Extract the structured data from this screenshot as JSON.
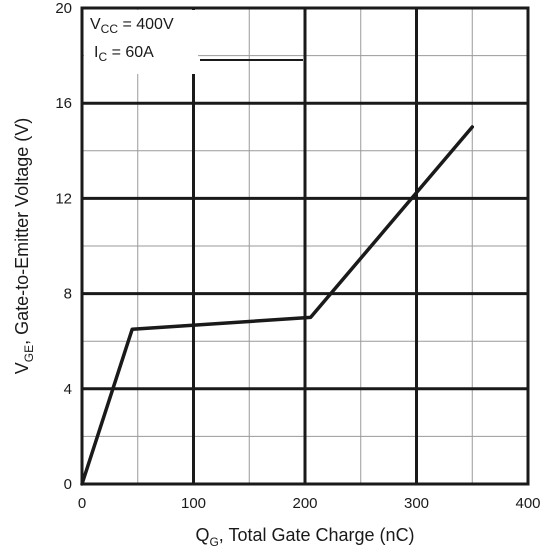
{
  "chart_data": {
    "type": "line",
    "title": "",
    "xlabel": {
      "main": "Q",
      "sub": "G",
      "rest": ", Total Gate Charge (nC)"
    },
    "ylabel": {
      "main": "V",
      "sub": "GE",
      "rest": ", Gate-to-Emitter Voltage (V)"
    },
    "xlim": [
      0,
      400
    ],
    "ylim": [
      0,
      20
    ],
    "x_ticks": [
      "0",
      "100",
      "200",
      "300",
      "400"
    ],
    "y_ticks": [
      "0",
      "4",
      "8",
      "12",
      "16",
      "20"
    ],
    "grid": true,
    "annotations": [
      {
        "main": "V",
        "sub": "CC",
        "rest": " = 400V"
      },
      {
        "main": "I",
        "sub": "C",
        "rest": "   = 60A"
      }
    ],
    "series": [
      {
        "x": [
          0,
          45,
          205,
          350
        ],
        "y": [
          0,
          6.5,
          7.0,
          15.0
        ]
      }
    ]
  }
}
